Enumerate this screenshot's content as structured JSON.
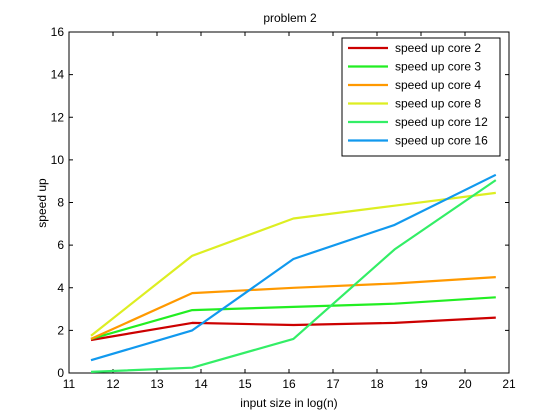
{
  "chart_data": {
    "type": "line",
    "title": "problem 2",
    "xlabel": "input size in log(n)",
    "ylabel": "speed up",
    "xlim": [
      11,
      21
    ],
    "ylim": [
      0,
      16
    ],
    "xticks": [
      11,
      12,
      13,
      14,
      15,
      16,
      17,
      18,
      19,
      20,
      21
    ],
    "yticks": [
      0,
      2,
      4,
      6,
      8,
      10,
      12,
      14,
      16
    ],
    "grid": false,
    "legend": "top-right",
    "x": [
      11.5,
      13.8,
      16.1,
      18.4,
      20.7
    ],
    "series": [
      {
        "name": "speed up core 2",
        "color": "#cc0000",
        "values": [
          1.55,
          2.35,
          2.25,
          2.35,
          2.6
        ]
      },
      {
        "name": "speed up core 3",
        "color": "#22ee22",
        "values": [
          1.6,
          2.95,
          3.1,
          3.25,
          3.55
        ]
      },
      {
        "name": "speed up core 4",
        "color": "#ff9900",
        "values": [
          1.6,
          3.75,
          4.0,
          4.2,
          4.5
        ]
      },
      {
        "name": "speed up core 8",
        "color": "#ddee22",
        "values": [
          1.75,
          5.5,
          7.25,
          7.85,
          8.45
        ]
      },
      {
        "name": "speed up core 12",
        "color": "#33ee66",
        "values": [
          0.05,
          0.25,
          1.6,
          5.8,
          9.05
        ]
      },
      {
        "name": "speed up core 16",
        "color": "#1199ee",
        "values": [
          0.6,
          2.0,
          5.35,
          6.95,
          9.3
        ]
      }
    ]
  }
}
